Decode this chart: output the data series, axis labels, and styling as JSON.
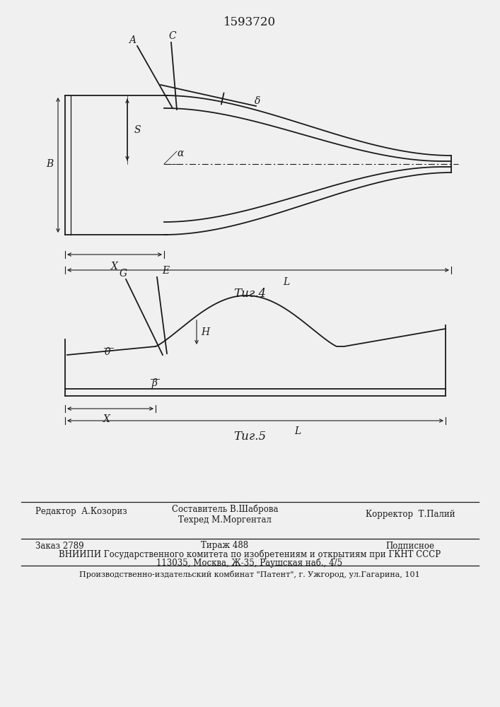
{
  "title": "1593720",
  "bg_color": "#f0f0f0",
  "line_color": "#1a1a1a",
  "footer_line1_left": "Редактор  А.Козориз",
  "footer_line1_center1": "Составитель В.Шаброва",
  "footer_line1_center2": "Техред М.Моргентал",
  "footer_line1_right": "Корректор  Т.Палий",
  "footer_line2_left": "Заказ 2789",
  "footer_line2_center": "Тираж 488",
  "footer_line2_right": "Подписное",
  "footer_line3": "ВНИИПИ Государственного комитета по изобретениям и открытиям при ГКНТ СССР",
  "footer_line4": "113035, Москва, Ж-35, Раушская наб., 4/5",
  "footer_line5": "Производственно-издательский комбинат \"Патент\", г. Ужгород, ул.Гагарина, 101",
  "fig4_label": "Τиг.4",
  "fig5_label": "Τиг.5"
}
